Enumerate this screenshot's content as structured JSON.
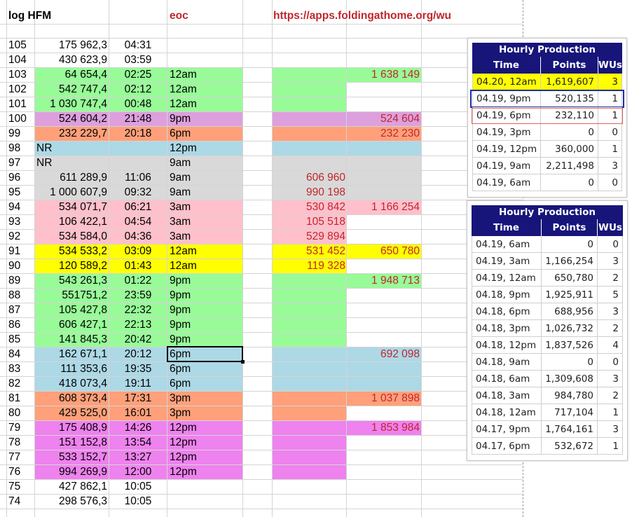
{
  "header": {
    "log_label": "log HFM",
    "eoc_label": "eoc",
    "url": "https://apps.foldingathome.org/wu"
  },
  "colors": {
    "green": "#98fb98",
    "purple": "#dda0dd",
    "orange": "#ffa07a",
    "blue": "#add8e6",
    "gray": "#d9d9d9",
    "pink": "#ffc0cb",
    "yellow": "#ffff00",
    "magenta": "#ee82ee",
    "red_text": "#c0262d",
    "panel_header": "#17157a"
  },
  "rows": [
    {
      "n": "105",
      "pts": "175 962,3",
      "time": "04:31",
      "slot": "",
      "eoc_row": "",
      "eoc_sum": "",
      "color": ""
    },
    {
      "n": "104",
      "pts": "430 623,9",
      "time": "03:59",
      "slot": "",
      "eoc_row": "",
      "eoc_sum": "",
      "color": ""
    },
    {
      "n": "103",
      "pts": "64 654,4",
      "time": "02:25",
      "slot": "12am",
      "eoc_row": "",
      "eoc_sum": "1 638 149",
      "color": "green"
    },
    {
      "n": "102",
      "pts": "542 747,4",
      "time": "02:12",
      "slot": "12am",
      "eoc_row": "",
      "eoc_sum": "",
      "color": "green"
    },
    {
      "n": "101",
      "pts": "1 030 747,4",
      "time": "00:48",
      "slot": "12am",
      "eoc_row": "",
      "eoc_sum": "",
      "color": "green"
    },
    {
      "n": "100",
      "pts": "524 604,2",
      "time": "21:48",
      "slot": "9pm",
      "eoc_row": "",
      "eoc_sum": "524 604",
      "color": "purple"
    },
    {
      "n": "99",
      "pts": "232 229,7",
      "time": "20:18",
      "slot": "6pm",
      "eoc_row": "",
      "eoc_sum": "232 230",
      "color": "orange"
    },
    {
      "n": "98",
      "pts": "NR",
      "time": "",
      "slot": "12pm",
      "eoc_row": "",
      "eoc_sum": "",
      "color": "blue"
    },
    {
      "n": "97",
      "pts": "NR",
      "time": "",
      "slot": "9am",
      "eoc_row": "",
      "eoc_sum": "",
      "color": "gray"
    },
    {
      "n": "96",
      "pts": "611 289,9",
      "time": "11:06",
      "slot": "9am",
      "eoc_row": "606 960",
      "eoc_sum": "",
      "color": "gray"
    },
    {
      "n": "95",
      "pts": "1 000 607,9",
      "time": "09:32",
      "slot": "9am",
      "eoc_row": "990 198",
      "eoc_sum": "",
      "color": "gray"
    },
    {
      "n": "94",
      "pts": "534 071,7",
      "time": "06:21",
      "slot": "3am",
      "eoc_row": "530 842",
      "eoc_sum": "1 166 254",
      "color": "pink"
    },
    {
      "n": "93",
      "pts": "106 422,1",
      "time": "04:54",
      "slot": "3am",
      "eoc_row": "105 518",
      "eoc_sum": "",
      "color": "pink"
    },
    {
      "n": "92",
      "pts": "534 584,0",
      "time": "04:36",
      "slot": "3am",
      "eoc_row": "529 894",
      "eoc_sum": "",
      "color": "pink"
    },
    {
      "n": "91",
      "pts": "534 533,2",
      "time": "03:09",
      "slot": "12am",
      "eoc_row": "531 452",
      "eoc_sum": "650 780",
      "color": "yellow"
    },
    {
      "n": "90",
      "pts": "120 589,2",
      "time": "01:43",
      "slot": "12am",
      "eoc_row": "119 328",
      "eoc_sum": "",
      "color": "yellow"
    },
    {
      "n": "89",
      "pts": "543 261,3",
      "time": "01:22",
      "slot": "9pm",
      "eoc_row": "",
      "eoc_sum": "1 948 713",
      "color": "green"
    },
    {
      "n": "88",
      "pts": "551751,2",
      "time": "23:59",
      "slot": "9pm",
      "eoc_row": "",
      "eoc_sum": "",
      "color": "green"
    },
    {
      "n": "87",
      "pts": "105 427,8",
      "time": "22:32",
      "slot": "9pm",
      "eoc_row": "",
      "eoc_sum": "",
      "color": "green"
    },
    {
      "n": "86",
      "pts": "606 427,1",
      "time": "22:13",
      "slot": "9pm",
      "eoc_row": "",
      "eoc_sum": "",
      "color": "green"
    },
    {
      "n": "85",
      "pts": "141 845,3",
      "time": "20:42",
      "slot": "9pm",
      "eoc_row": "",
      "eoc_sum": "",
      "color": "green"
    },
    {
      "n": "84",
      "pts": "162 671,1",
      "time": "20:12",
      "slot": "6pm",
      "eoc_row": "",
      "eoc_sum": "692 098",
      "color": "blue"
    },
    {
      "n": "83",
      "pts": "111 353,6",
      "time": "19:35",
      "slot": "6pm",
      "eoc_row": "",
      "eoc_sum": "",
      "color": "blue"
    },
    {
      "n": "82",
      "pts": "418 073,4",
      "time": "19:11",
      "slot": "6pm",
      "eoc_row": "",
      "eoc_sum": "",
      "color": "blue"
    },
    {
      "n": "81",
      "pts": "608 373,4",
      "time": "17:31",
      "slot": "3pm",
      "eoc_row": "",
      "eoc_sum": "1 037 898",
      "color": "orange"
    },
    {
      "n": "80",
      "pts": "429 525,0",
      "time": "16:01",
      "slot": "3pm",
      "eoc_row": "",
      "eoc_sum": "",
      "color": "orange"
    },
    {
      "n": "79",
      "pts": "175 408,9",
      "time": "14:26",
      "slot": "12pm",
      "eoc_row": "",
      "eoc_sum": "1 853 984",
      "color": "magenta"
    },
    {
      "n": "78",
      "pts": "151 152,8",
      "time": "13:54",
      "slot": "12pm",
      "eoc_row": "",
      "eoc_sum": "",
      "color": "magenta"
    },
    {
      "n": "77",
      "pts": "533 152,7",
      "time": "13:27",
      "slot": "12pm",
      "eoc_row": "",
      "eoc_sum": "",
      "color": "magenta"
    },
    {
      "n": "76",
      "pts": "994 269,9",
      "time": "12:00",
      "slot": "12pm",
      "eoc_row": "",
      "eoc_sum": "",
      "color": "magenta"
    },
    {
      "n": "75",
      "pts": "427 862,1",
      "time": "10:05",
      "slot": "",
      "eoc_row": "",
      "eoc_sum": "",
      "color": ""
    },
    {
      "n": "74",
      "pts": "298 576,3",
      "time": "10:05",
      "slot": "",
      "eoc_row": "",
      "eoc_sum": "",
      "color": ""
    }
  ],
  "selected_row_number": "84",
  "panel1": {
    "title": "Hourly Production",
    "headers": [
      "Time",
      "Points",
      "WUs"
    ],
    "rows": [
      {
        "time": "04.20, 12am",
        "points": "1,619,607",
        "wus": "3",
        "highlight": "yellow"
      },
      {
        "time": "04.19, 9pm",
        "points": "520,135",
        "wus": "1",
        "highlight": "blue-outline"
      },
      {
        "time": "04.19, 6pm",
        "points": "232,110",
        "wus": "1",
        "highlight": "red-outline"
      },
      {
        "time": "04.19, 3pm",
        "points": "0",
        "wus": "0",
        "highlight": ""
      },
      {
        "time": "04.19, 12pm",
        "points": "360,000",
        "wus": "1",
        "highlight": ""
      },
      {
        "time": "04.19, 9am",
        "points": "2,211,498",
        "wus": "3",
        "highlight": ""
      },
      {
        "time": "04.19, 6am",
        "points": "0",
        "wus": "0",
        "highlight": ""
      }
    ]
  },
  "panel2": {
    "title": "Hourly Production",
    "headers": [
      "Time",
      "Points",
      "WUs"
    ],
    "rows": [
      {
        "time": "04.19, 6am",
        "points": "0",
        "wus": "0"
      },
      {
        "time": "04.19, 3am",
        "points": "1,166,254",
        "wus": "3"
      },
      {
        "time": "04.19, 12am",
        "points": "650,780",
        "wus": "2"
      },
      {
        "time": "04.18, 9pm",
        "points": "1,925,911",
        "wus": "5"
      },
      {
        "time": "04.18, 6pm",
        "points": "688,956",
        "wus": "3"
      },
      {
        "time": "04.18, 3pm",
        "points": "1,026,732",
        "wus": "2"
      },
      {
        "time": "04.18, 12pm",
        "points": "1,837,526",
        "wus": "4"
      },
      {
        "time": "04.18, 9am",
        "points": "0",
        "wus": "0"
      },
      {
        "time": "04.18, 6am",
        "points": "1,309,608",
        "wus": "3"
      },
      {
        "time": "04.18, 3am",
        "points": "984,780",
        "wus": "2"
      },
      {
        "time": "04.18, 12am",
        "points": "717,104",
        "wus": "1"
      },
      {
        "time": "04.17, 9pm",
        "points": "1,764,161",
        "wus": "3"
      },
      {
        "time": "04.17, 6pm",
        "points": "532,672",
        "wus": "1"
      }
    ]
  }
}
